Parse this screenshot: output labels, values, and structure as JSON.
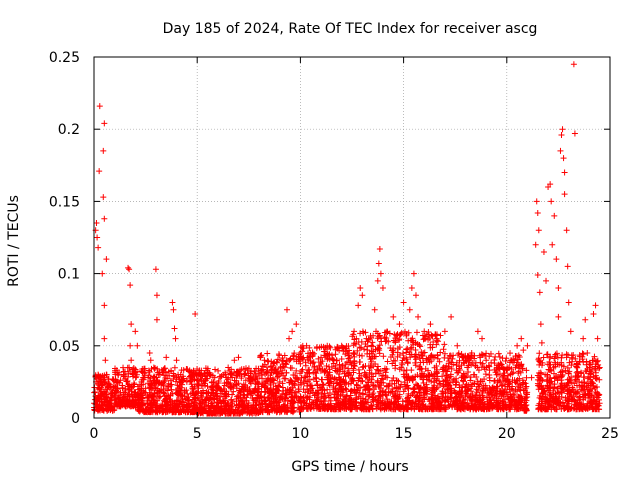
{
  "chart_data": {
    "type": "scatter",
    "title": "Day 185 of 2024, Rate Of TEC Index for receiver ascg",
    "xlabel": "GPS time / hours",
    "ylabel": "ROTI / TECUs",
    "xlim": [
      0,
      25
    ],
    "ylim": [
      0,
      0.25
    ],
    "grid": true,
    "x_ticks": [
      0,
      5,
      10,
      15,
      20,
      25
    ],
    "x_tick_labels": [
      "0",
      "5",
      "10",
      "15",
      "20",
      "25"
    ],
    "y_ticks": [
      0,
      0.05,
      0.1,
      0.15,
      0.2,
      0.25
    ],
    "y_tick_labels": [
      "0",
      "0.05",
      "0.1",
      "0.15",
      "0.2",
      "0.25"
    ],
    "series": [
      {
        "name": "ROTI",
        "color": "#ff0000",
        "marker": "plus",
        "points": [
          [
            0.05,
            0.018
          ],
          [
            0.08,
            0.13
          ],
          [
            0.1,
            0.025
          ],
          [
            0.12,
            0.135
          ],
          [
            0.15,
            0.012
          ],
          [
            0.15,
            0.125
          ],
          [
            0.2,
            0.118
          ],
          [
            0.2,
            0.03
          ],
          [
            0.25,
            0.171
          ],
          [
            0.28,
            0.216
          ],
          [
            0.3,
            0.015
          ],
          [
            0.35,
            0.02
          ],
          [
            0.4,
            0.1
          ],
          [
            0.4,
            0.023
          ],
          [
            0.45,
            0.153
          ],
          [
            0.45,
            0.185
          ],
          [
            0.5,
            0.204
          ],
          [
            0.5,
            0.138
          ],
          [
            0.5,
            0.078
          ],
          [
            0.5,
            0.055
          ],
          [
            0.55,
            0.04
          ],
          [
            0.6,
            0.11
          ],
          [
            0.6,
            0.03
          ],
          [
            0.6,
            0.016
          ],
          [
            0.7,
            0.022
          ],
          [
            0.8,
            0.012
          ],
          [
            0.9,
            0.018
          ],
          [
            1.65,
            0.104
          ],
          [
            1.7,
            0.103
          ],
          [
            1.75,
            0.092
          ],
          [
            1.8,
            0.065
          ],
          [
            1.75,
            0.05
          ],
          [
            1.8,
            0.04
          ],
          [
            1.7,
            0.035
          ],
          [
            1.9,
            0.03
          ],
          [
            2.0,
            0.06
          ],
          [
            2.1,
            0.05
          ],
          [
            2.3,
            0.025
          ],
          [
            2.7,
            0.045
          ],
          [
            2.75,
            0.04
          ],
          [
            2.9,
            0.035
          ],
          [
            3.0,
            0.103
          ],
          [
            3.05,
            0.085
          ],
          [
            3.05,
            0.068
          ],
          [
            3.2,
            0.03
          ],
          [
            3.5,
            0.042
          ],
          [
            3.8,
            0.08
          ],
          [
            3.85,
            0.075
          ],
          [
            3.9,
            0.062
          ],
          [
            3.95,
            0.055
          ],
          [
            4.0,
            0.04
          ],
          [
            4.2,
            0.03
          ],
          [
            4.5,
            0.025
          ],
          [
            4.8,
            0.02
          ],
          [
            4.9,
            0.072
          ],
          [
            5.2,
            0.03
          ],
          [
            5.5,
            0.022
          ],
          [
            5.8,
            0.025
          ],
          [
            6.0,
            0.02
          ],
          [
            6.5,
            0.035
          ],
          [
            6.8,
            0.04
          ],
          [
            7.0,
            0.042
          ],
          [
            7.3,
            0.03
          ],
          [
            7.6,
            0.025
          ],
          [
            8.0,
            0.02
          ],
          [
            8.5,
            0.018
          ],
          [
            9.0,
            0.025
          ],
          [
            9.35,
            0.075
          ],
          [
            9.45,
            0.055
          ],
          [
            9.6,
            0.06
          ],
          [
            9.8,
            0.065
          ],
          [
            10.0,
            0.045
          ],
          [
            10.3,
            0.05
          ],
          [
            10.6,
            0.038
          ],
          [
            11.0,
            0.042
          ],
          [
            11.3,
            0.05
          ],
          [
            11.6,
            0.04
          ],
          [
            12.0,
            0.05
          ],
          [
            12.3,
            0.045
          ],
          [
            12.6,
            0.06
          ],
          [
            12.8,
            0.078
          ],
          [
            12.9,
            0.09
          ],
          [
            13.0,
            0.085
          ],
          [
            13.2,
            0.055
          ],
          [
            13.6,
            0.075
          ],
          [
            13.75,
            0.095
          ],
          [
            13.8,
            0.107
          ],
          [
            13.85,
            0.117
          ],
          [
            13.9,
            0.1
          ],
          [
            14.0,
            0.09
          ],
          [
            14.2,
            0.06
          ],
          [
            14.5,
            0.07
          ],
          [
            14.8,
            0.065
          ],
          [
            15.0,
            0.08
          ],
          [
            15.3,
            0.075
          ],
          [
            15.4,
            0.09
          ],
          [
            15.5,
            0.1
          ],
          [
            15.6,
            0.085
          ],
          [
            15.7,
            0.07
          ],
          [
            16.0,
            0.06
          ],
          [
            16.3,
            0.065
          ],
          [
            16.6,
            0.055
          ],
          [
            17.0,
            0.06
          ],
          [
            17.3,
            0.07
          ],
          [
            17.6,
            0.05
          ],
          [
            18.0,
            0.04
          ],
          [
            18.3,
            0.045
          ],
          [
            18.6,
            0.06
          ],
          [
            18.8,
            0.055
          ],
          [
            19.0,
            0.04
          ],
          [
            19.4,
            0.038
          ],
          [
            19.8,
            0.035
          ],
          [
            20.2,
            0.04
          ],
          [
            20.5,
            0.05
          ],
          [
            20.7,
            0.055
          ],
          [
            20.8,
            0.047
          ],
          [
            20.95,
            0.033
          ],
          [
            20.95,
            0.012
          ],
          [
            21.0,
            0.05
          ],
          [
            21.2,
            0.028
          ],
          [
            21.4,
            0.12
          ],
          [
            21.45,
            0.15
          ],
          [
            21.5,
            0.142
          ],
          [
            21.55,
            0.13
          ],
          [
            21.5,
            0.099
          ],
          [
            21.6,
            0.087
          ],
          [
            21.65,
            0.065
          ],
          [
            21.7,
            0.052
          ],
          [
            21.8,
            0.115
          ],
          [
            21.9,
            0.095
          ],
          [
            22.0,
            0.16
          ],
          [
            22.1,
            0.162
          ],
          [
            22.15,
            0.15
          ],
          [
            22.2,
            0.12
          ],
          [
            22.3,
            0.14
          ],
          [
            22.4,
            0.11
          ],
          [
            22.5,
            0.09
          ],
          [
            22.5,
            0.07
          ],
          [
            22.6,
            0.185
          ],
          [
            22.65,
            0.196
          ],
          [
            22.7,
            0.2
          ],
          [
            22.75,
            0.18
          ],
          [
            22.8,
            0.17
          ],
          [
            22.8,
            0.155
          ],
          [
            22.9,
            0.13
          ],
          [
            22.95,
            0.105
          ],
          [
            23.0,
            0.08
          ],
          [
            23.1,
            0.06
          ],
          [
            23.2,
            0.02
          ],
          [
            23.25,
            0.245
          ],
          [
            23.3,
            0.197
          ],
          [
            23.5,
            0.025
          ],
          [
            23.7,
            0.055
          ],
          [
            23.8,
            0.068
          ],
          [
            23.9,
            0.045
          ],
          [
            24.0,
            0.035
          ],
          [
            24.1,
            0.025
          ],
          [
            24.2,
            0.072
          ],
          [
            24.3,
            0.078
          ],
          [
            24.4,
            0.055
          ],
          [
            24.5,
            0.035
          ]
        ],
        "band_profile": [
          {
            "x": [
              0,
              1
            ],
            "y_range": [
              0.005,
              0.03
            ]
          },
          {
            "x": [
              1,
              2
            ],
            "y_range": [
              0.008,
              0.035
            ]
          },
          {
            "x": [
              2,
              5
            ],
            "y_range": [
              0.004,
              0.035
            ]
          },
          {
            "x": [
              5,
              8
            ],
            "y_range": [
              0.003,
              0.035
            ]
          },
          {
            "x": [
              8,
              10
            ],
            "y_range": [
              0.004,
              0.045
            ]
          },
          {
            "x": [
              10,
              12.5
            ],
            "y_range": [
              0.006,
              0.05
            ]
          },
          {
            "x": [
              12.5,
              17
            ],
            "y_range": [
              0.006,
              0.06
            ]
          },
          {
            "x": [
              17,
              20.8
            ],
            "y_range": [
              0.006,
              0.045
            ]
          },
          {
            "x": [
              20.8,
              21
            ],
            "y_range": [
              0.005,
              0.03
            ]
          },
          {
            "x": [
              21.5,
              24.5
            ],
            "y_range": [
              0.006,
              0.045
            ]
          }
        ]
      }
    ]
  }
}
